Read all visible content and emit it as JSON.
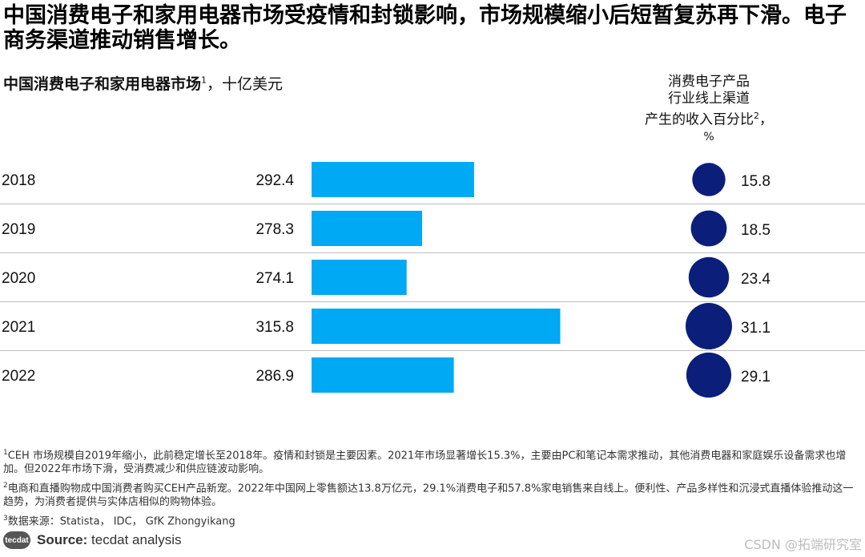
{
  "headline": "中国消费电子和家用电器市场受疫情和封锁影响，市场规模缩小后短暂复苏再下滑。电子商务渠道推动销售增长。",
  "subtitle": {
    "bold": "中国消费电子和家用电器市场",
    "sup": "1",
    "rest": "，十亿美元"
  },
  "right_title": {
    "line1": "消费电子产品",
    "line2": "行业线上渠道",
    "line3": "产生的收入百分比",
    "sup": "2",
    "comma": "，",
    "unit": "%"
  },
  "chart_data": {
    "type": "bar",
    "orientation": "horizontal",
    "title": "中国消费电子和家用电器市场，十亿美元",
    "categories": [
      "2018",
      "2019",
      "2020",
      "2021",
      "2022"
    ],
    "series": [
      {
        "name": "市场规模（十亿美元）",
        "values": [
          292.4,
          278.3,
          274.1,
          315.8,
          286.9
        ],
        "labels": [
          "292.4",
          "278.3",
          "274.1",
          "315.8",
          "286.9"
        ]
      },
      {
        "name": "线上渠道收入百分比（%）",
        "values": [
          15.8,
          18.5,
          23.4,
          31.1,
          29.1
        ],
        "labels": [
          "15.8",
          "18.5",
          "23.4",
          "31.1",
          "29.1"
        ],
        "mark": "bubble"
      }
    ],
    "bar_axis_min": 248.3,
    "colors": {
      "bar": "#00A9F4",
      "bubble": "#0B1F7A",
      "separator": "#BDBDBD"
    }
  },
  "footnotes": {
    "f1": {
      "sup": "1",
      "text": "CEH 市场规模自2019年缩小，此前稳定增长至2018年。疫情和封锁是主要因素。2021年市场显著增长15.3%，主要由PC和笔记本需求推动，其他消费电器和家庭娱乐设备需求也增加。但2022年市场下滑，受消费减少和供应链波动影响。"
    },
    "f2": {
      "sup": "2",
      "text": "电商和直播购物成中国消费者购买CEH产品新宠。2022年中国网上零售额达13.8万亿元，29.1%消费电子和57.8%家电销售来自线上。便利性、产品多样性和沉浸式直播体验推动这一趋势，为消费者提供与实体店相似的购物体验。"
    },
    "f3": {
      "sup": "3",
      "text": "数据来源：Statista， IDC， GfK Zhongyikang"
    }
  },
  "source": {
    "logo": "tecdat",
    "label": "Source:",
    "text": " tecdat analysis"
  },
  "watermark": "CSDN @拓端研究室"
}
